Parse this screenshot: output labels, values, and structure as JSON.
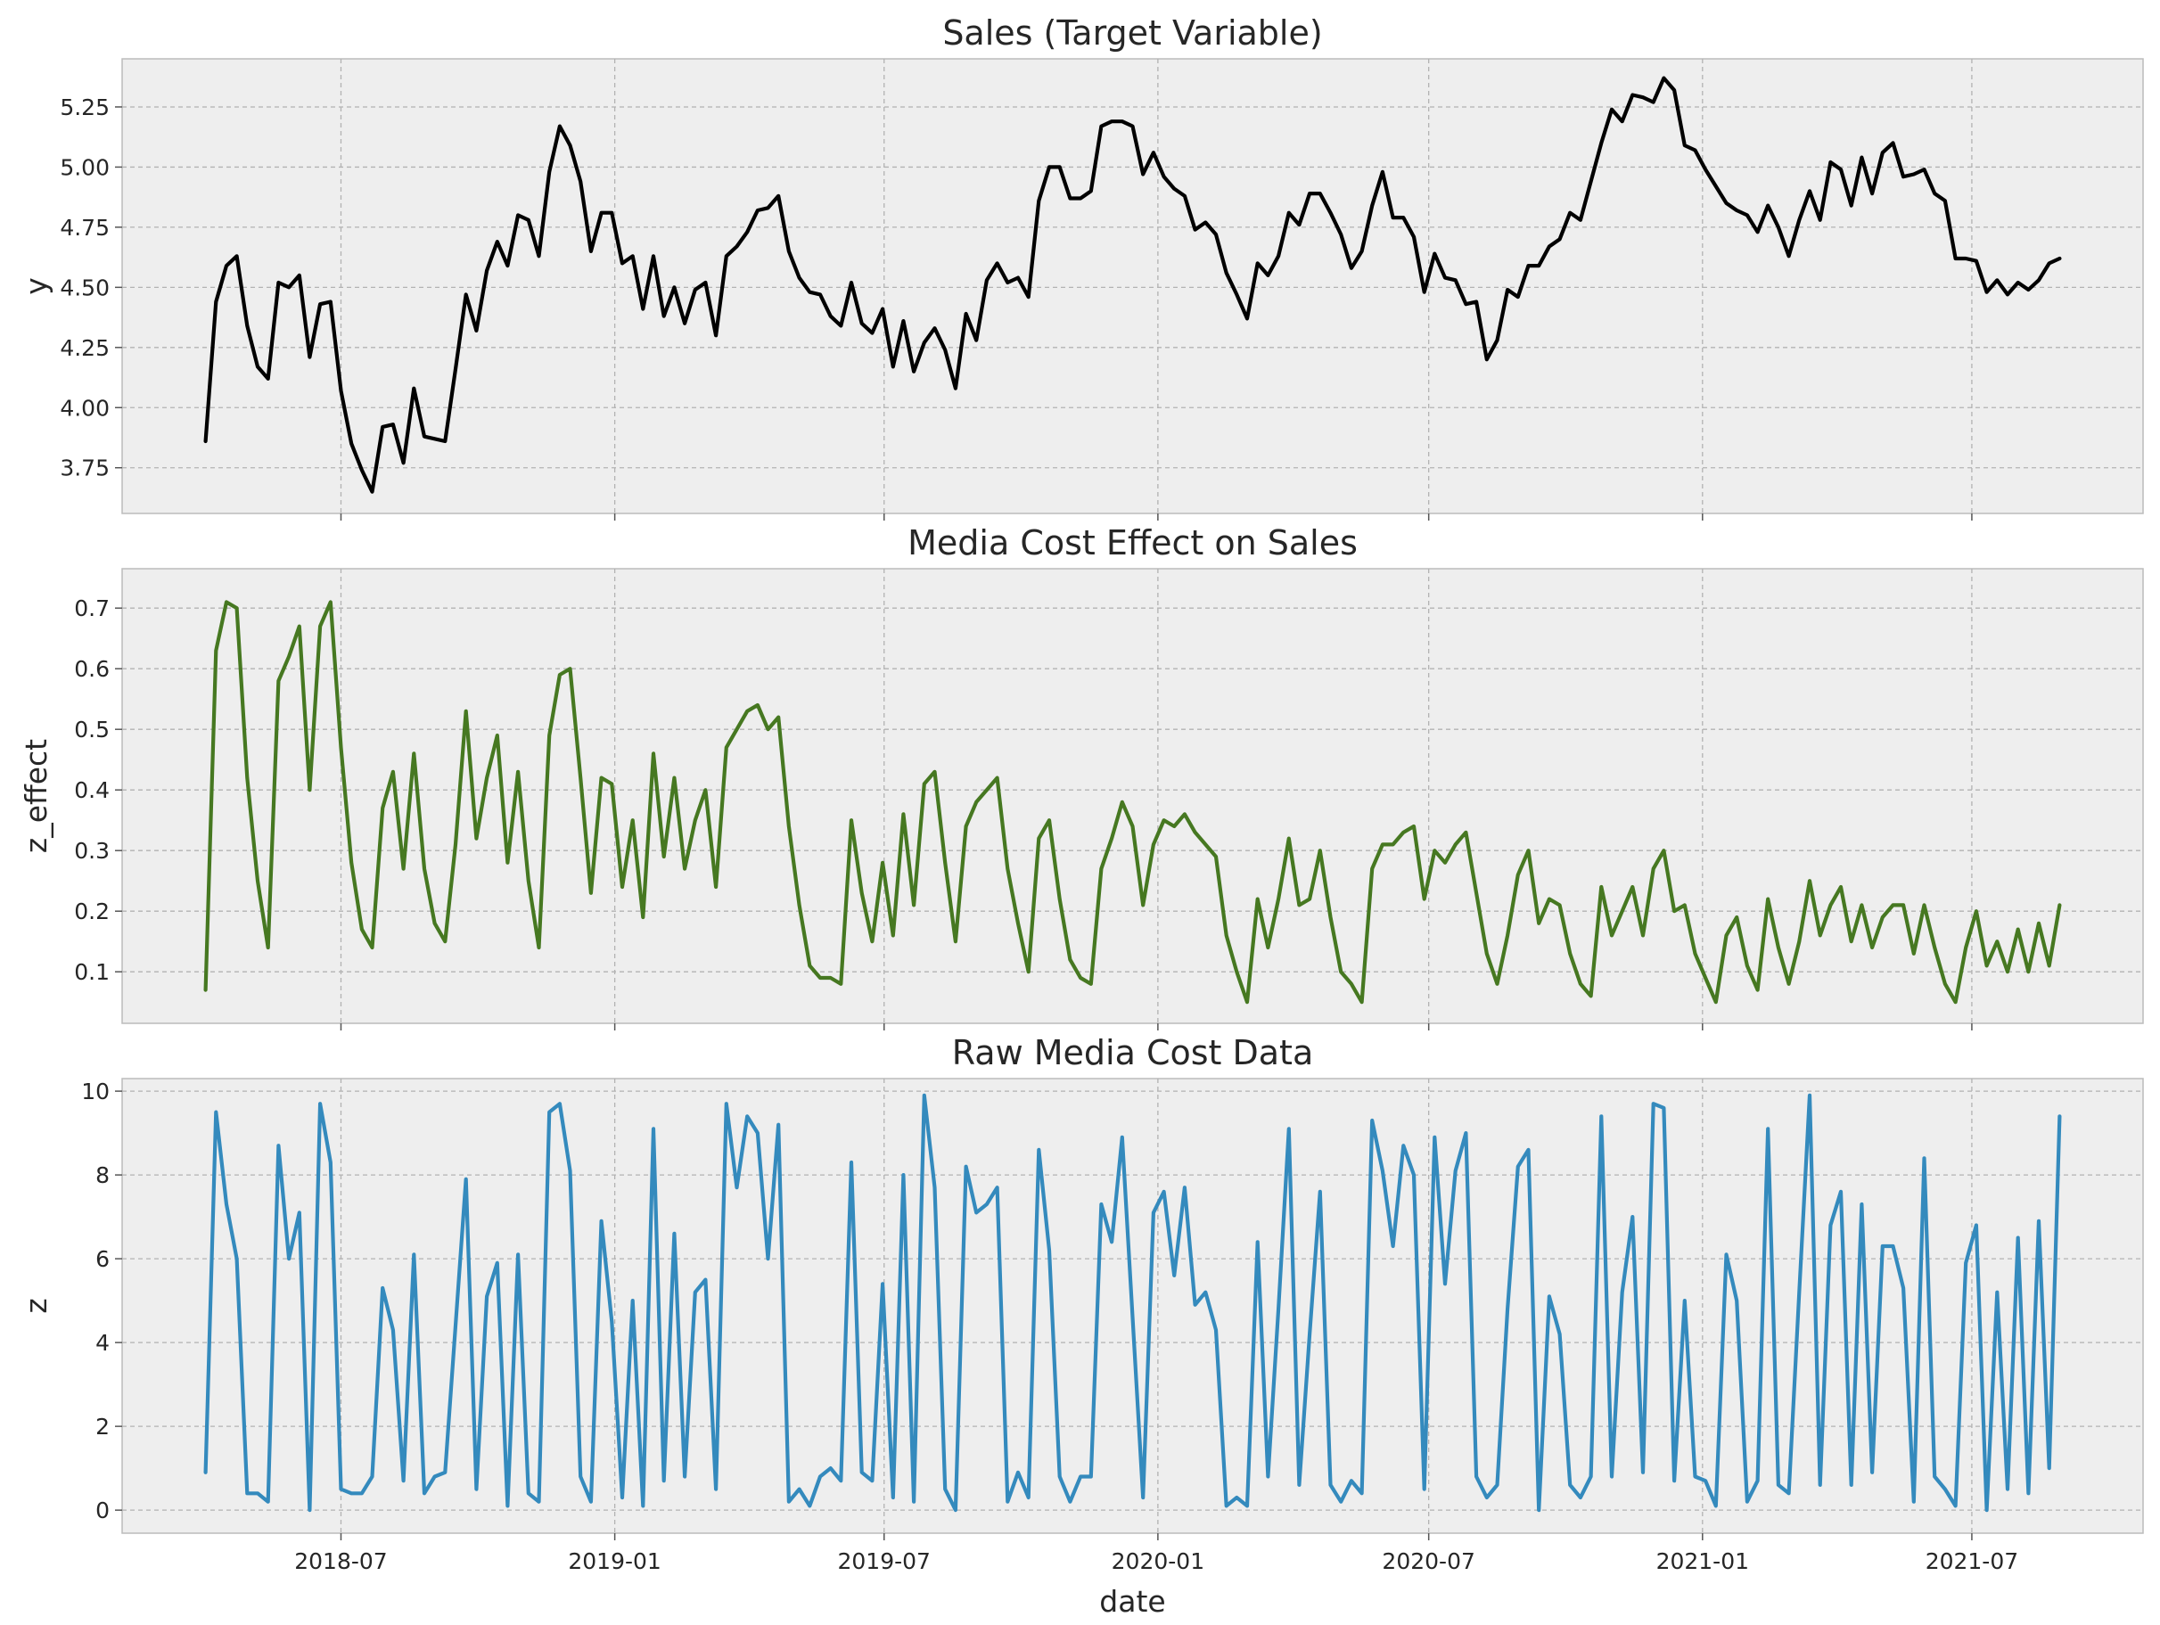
{
  "chart_data": [
    {
      "type": "line",
      "title": "Sales (Target Variable)",
      "xlabel": "",
      "ylabel": "y",
      "color": "#000000",
      "x_start": "2018-04-01",
      "x_step_days": 7,
      "x_ticks": [
        "2018-07",
        "2019-01",
        "2019-07",
        "2020-01",
        "2020-07",
        "2021-01",
        "2021-07"
      ],
      "yticks": [
        3.75,
        4.0,
        4.25,
        4.5,
        4.75,
        5.0,
        5.25
      ],
      "ylim": [
        3.56,
        5.45
      ],
      "grid": true,
      "values": [
        3.86,
        4.44,
        4.59,
        4.63,
        4.34,
        4.17,
        4.12,
        4.52,
        4.5,
        4.55,
        4.21,
        4.43,
        4.44,
        4.07,
        3.85,
        3.74,
        3.65,
        3.92,
        3.93,
        3.77,
        4.08,
        3.88,
        3.87,
        3.86,
        4.16,
        4.47,
        4.32,
        4.57,
        4.69,
        4.59,
        4.8,
        4.78,
        4.63,
        4.98,
        5.17,
        5.09,
        4.94,
        4.65,
        4.81,
        4.81,
        4.6,
        4.63,
        4.41,
        4.63,
        4.38,
        4.5,
        4.35,
        4.49,
        4.52,
        4.3,
        4.63,
        4.67,
        4.73,
        4.82,
        4.83,
        4.88,
        4.65,
        4.54,
        4.48,
        4.47,
        4.38,
        4.34,
        4.52,
        4.35,
        4.31,
        4.41,
        4.17,
        4.36,
        4.15,
        4.27,
        4.33,
        4.24,
        4.08,
        4.39,
        4.28,
        4.53,
        4.6,
        4.52,
        4.54,
        4.46,
        4.86,
        5.0,
        5.0,
        4.87,
        4.87,
        4.9,
        5.17,
        5.19,
        5.19,
        5.17,
        4.97,
        5.06,
        4.96,
        4.91,
        4.88,
        4.74,
        4.77,
        4.72,
        4.56,
        4.47,
        4.37,
        4.6,
        4.55,
        4.63,
        4.81,
        4.76,
        4.89,
        4.89,
        4.81,
        4.72,
        4.58,
        4.65,
        4.84,
        4.98,
        4.79,
        4.79,
        4.71,
        4.48,
        4.64,
        4.54,
        4.53,
        4.43,
        4.44,
        4.2,
        4.28,
        4.49,
        4.46,
        4.59,
        4.59,
        4.67,
        4.7,
        4.81,
        4.78,
        4.94,
        5.1,
        5.24,
        5.19,
        5.3,
        5.29,
        5.27,
        5.37,
        5.32,
        5.09,
        5.07,
        4.99,
        4.92,
        4.85,
        4.82,
        4.8,
        4.73,
        4.84,
        4.75,
        4.63,
        4.78,
        4.9,
        4.78,
        5.02,
        4.99,
        4.84,
        5.04,
        4.89,
        5.06,
        5.1,
        4.96,
        4.97,
        4.99,
        4.89,
        4.86,
        4.62,
        4.62,
        4.61,
        4.48,
        4.53,
        4.47,
        4.52,
        4.49,
        4.53,
        4.6,
        4.62
      ]
    },
    {
      "type": "line",
      "title": "Media Cost Effect on Sales",
      "xlabel": "",
      "ylabel": "z_effect",
      "color": "#467821",
      "x_start": "2018-04-01",
      "x_step_days": 7,
      "x_ticks": [
        "2018-07",
        "2019-01",
        "2019-07",
        "2020-01",
        "2020-07",
        "2021-01",
        "2021-07"
      ],
      "yticks": [
        0.1,
        0.2,
        0.3,
        0.4,
        0.5,
        0.6,
        0.7
      ],
      "ylim": [
        0.015,
        0.765
      ],
      "grid": true,
      "values": [
        0.07,
        0.63,
        0.71,
        0.7,
        0.42,
        0.25,
        0.14,
        0.58,
        0.62,
        0.67,
        0.4,
        0.67,
        0.71,
        0.47,
        0.28,
        0.17,
        0.14,
        0.37,
        0.43,
        0.27,
        0.46,
        0.27,
        0.18,
        0.15,
        0.31,
        0.53,
        0.32,
        0.42,
        0.49,
        0.28,
        0.43,
        0.25,
        0.14,
        0.49,
        0.59,
        0.6,
        0.42,
        0.23,
        0.42,
        0.41,
        0.24,
        0.35,
        0.19,
        0.46,
        0.29,
        0.42,
        0.27,
        0.35,
        0.4,
        0.24,
        0.47,
        0.5,
        0.53,
        0.54,
        0.5,
        0.52,
        0.34,
        0.21,
        0.11,
        0.09,
        0.09,
        0.08,
        0.35,
        0.23,
        0.15,
        0.28,
        0.16,
        0.36,
        0.21,
        0.41,
        0.43,
        0.28,
        0.15,
        0.34,
        0.38,
        0.4,
        0.42,
        0.27,
        0.18,
        0.1,
        0.32,
        0.35,
        0.22,
        0.12,
        0.09,
        0.08,
        0.27,
        0.32,
        0.38,
        0.34,
        0.21,
        0.31,
        0.35,
        0.34,
        0.36,
        0.33,
        0.31,
        0.29,
        0.16,
        0.1,
        0.05,
        0.22,
        0.14,
        0.22,
        0.32,
        0.21,
        0.22,
        0.3,
        0.19,
        0.1,
        0.08,
        0.05,
        0.27,
        0.31,
        0.31,
        0.33,
        0.34,
        0.22,
        0.3,
        0.28,
        0.31,
        0.33,
        0.23,
        0.13,
        0.08,
        0.16,
        0.26,
        0.3,
        0.18,
        0.22,
        0.21,
        0.13,
        0.08,
        0.06,
        0.24,
        0.16,
        0.2,
        0.24,
        0.16,
        0.27,
        0.3,
        0.2,
        0.21,
        0.13,
        0.09,
        0.05,
        0.16,
        0.19,
        0.11,
        0.07,
        0.22,
        0.14,
        0.08,
        0.15,
        0.25,
        0.16,
        0.21,
        0.24,
        0.15,
        0.21,
        0.14,
        0.19,
        0.21,
        0.21,
        0.13,
        0.21,
        0.14,
        0.08,
        0.05,
        0.14,
        0.2,
        0.11,
        0.15,
        0.1,
        0.17,
        0.1,
        0.18,
        0.11,
        0.21
      ]
    },
    {
      "type": "line",
      "title": "Raw Media Cost Data",
      "xlabel": "date",
      "ylabel": "z",
      "color": "#348abd",
      "x_start": "2018-04-01",
      "x_step_days": 7,
      "x_ticks": [
        "2018-07",
        "2019-01",
        "2019-07",
        "2020-01",
        "2020-07",
        "2021-01",
        "2021-07"
      ],
      "yticks": [
        0,
        2,
        4,
        6,
        8,
        10
      ],
      "ylim": [
        -0.55,
        10.3
      ],
      "grid": true,
      "values": [
        0.9,
        9.5,
        7.3,
        6.0,
        0.4,
        0.4,
        0.2,
        8.7,
        6.0,
        7.1,
        0.0,
        9.7,
        8.3,
        0.5,
        0.4,
        0.4,
        0.8,
        5.3,
        4.3,
        0.7,
        6.1,
        0.4,
        0.8,
        0.9,
        4.4,
        7.9,
        0.5,
        5.1,
        5.9,
        0.1,
        6.1,
        0.4,
        0.2,
        9.5,
        9.7,
        8.1,
        0.8,
        0.2,
        6.9,
        4.5,
        0.3,
        5.0,
        0.1,
        9.1,
        0.7,
        6.6,
        0.8,
        5.2,
        5.5,
        0.5,
        9.7,
        7.7,
        9.4,
        9.0,
        6.0,
        9.2,
        0.2,
        0.5,
        0.1,
        0.8,
        1.0,
        0.7,
        8.3,
        0.9,
        0.7,
        5.4,
        0.3,
        8.0,
        0.2,
        9.9,
        7.7,
        0.5,
        0.0,
        8.2,
        7.1,
        7.3,
        7.7,
        0.2,
        0.9,
        0.3,
        8.6,
        6.2,
        0.8,
        0.2,
        0.8,
        0.8,
        7.3,
        6.4,
        8.9,
        4.6,
        0.3,
        7.1,
        7.6,
        5.6,
        7.7,
        4.9,
        5.2,
        4.3,
        0.1,
        0.3,
        0.1,
        6.4,
        0.8,
        4.8,
        9.1,
        0.6,
        4.2,
        7.6,
        0.6,
        0.2,
        0.7,
        0.4,
        9.3,
        8.1,
        6.3,
        8.7,
        8.0,
        0.5,
        8.9,
        5.4,
        8.1,
        9.0,
        0.8,
        0.3,
        0.6,
        4.8,
        8.2,
        8.6,
        0.0,
        5.1,
        4.2,
        0.6,
        0.3,
        0.8,
        9.4,
        0.8,
        5.2,
        7.0,
        0.9,
        9.7,
        9.6,
        0.7,
        5.0,
        0.8,
        0.7,
        0.1,
        6.1,
        5.0,
        0.2,
        0.7,
        9.1,
        0.6,
        0.4,
        5.2,
        9.9,
        0.6,
        6.8,
        7.6,
        0.6,
        7.3,
        0.9,
        6.3,
        6.3,
        5.3,
        0.2,
        8.4,
        0.8,
        0.5,
        0.1,
        5.9,
        6.8,
        0.0,
        5.2,
        0.5,
        6.5,
        0.4,
        6.9,
        1.0,
        9.4
      ]
    }
  ]
}
